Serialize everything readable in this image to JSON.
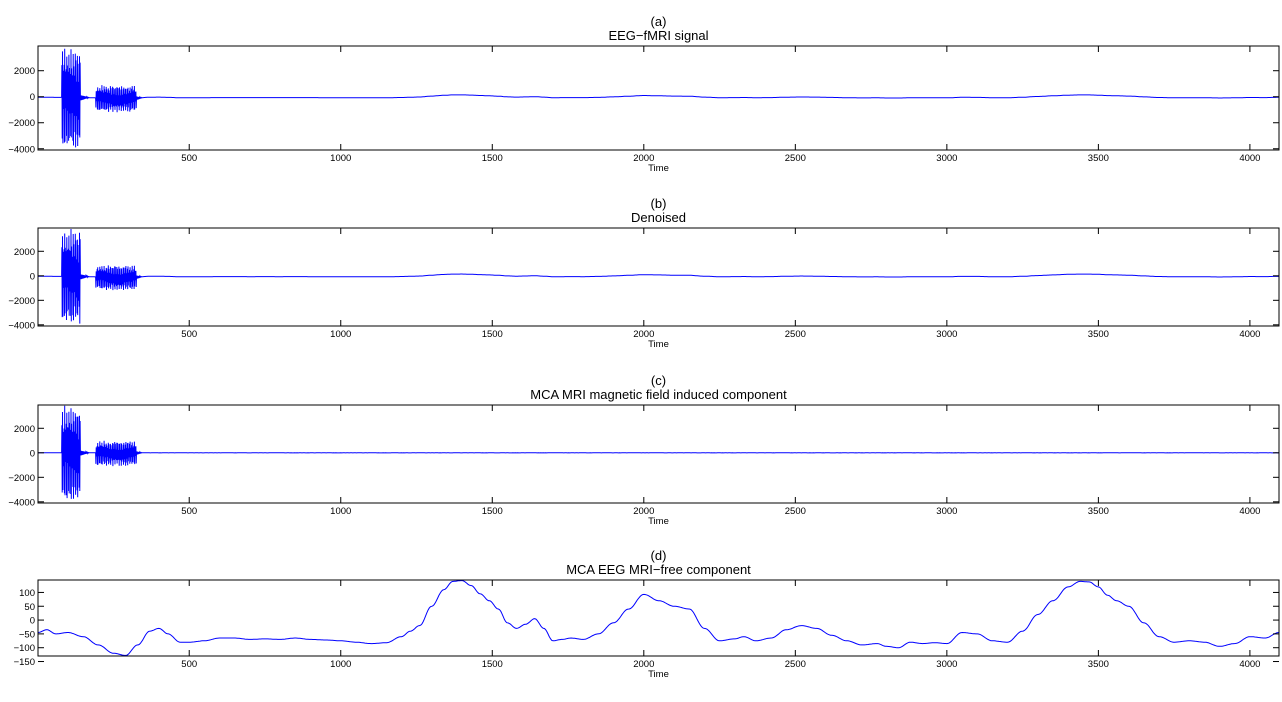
{
  "chart_data": [
    {
      "type": "line",
      "panel_label": "(a)",
      "title": "EEG−fMRI signal",
      "xlabel": "Time",
      "ylabel": "",
      "xlim": [
        1,
        4096
      ],
      "ylim": [
        -4096,
        3900
      ],
      "xticks": [
        500,
        1000,
        1500,
        2000,
        2500,
        3000,
        3500,
        4000
      ],
      "yticks": [
        -4000,
        -2000,
        0,
        2000
      ],
      "ytick_labels": [
        "−4000",
        "−2000",
        "0",
        "2000"
      ],
      "color": "#0000ff",
      "signal": "artifact_plus_eeg"
    },
    {
      "type": "line",
      "panel_label": "(b)",
      "title": "Denoised",
      "xlabel": "Time",
      "ylabel": "",
      "xlim": [
        1,
        4096
      ],
      "ylim": [
        -4096,
        3900
      ],
      "xticks": [
        500,
        1000,
        1500,
        2000,
        2500,
        3000,
        3500,
        4000
      ],
      "yticks": [
        -4000,
        -2000,
        0,
        2000
      ],
      "ytick_labels": [
        "−4000",
        "−2000",
        "0",
        "2000"
      ],
      "color": "#0000ff",
      "signal": "artifact_plus_eeg"
    },
    {
      "type": "line",
      "panel_label": "(c)",
      "title": "MCA MRI magnetic field induced component",
      "xlabel": "Time",
      "ylabel": "",
      "xlim": [
        1,
        4096
      ],
      "ylim": [
        -4096,
        3900
      ],
      "xticks": [
        500,
        1000,
        1500,
        2000,
        2500,
        3000,
        3500,
        4000
      ],
      "yticks": [
        -4000,
        -2000,
        0,
        2000
      ],
      "ytick_labels": [
        "−4000",
        "−2000",
        "0",
        "2000"
      ],
      "color": "#0000ff",
      "signal": "artifact"
    },
    {
      "type": "line",
      "panel_label": "(d)",
      "title": "MCA EEG MRI−free component",
      "xlabel": "Time",
      "ylabel": "",
      "xlim": [
        1,
        4096
      ],
      "ylim": [
        -130,
        145
      ],
      "xticks": [
        500,
        1000,
        1500,
        2000,
        2500,
        3000,
        3500,
        4000
      ],
      "yticks": [
        -150,
        -100,
        -50,
        0,
        50,
        100
      ],
      "ytick_labels": [
        "−150",
        "−100",
        "−50",
        "0",
        "50",
        "100"
      ],
      "color": "#0000ff",
      "signal": "eeg"
    }
  ],
  "eeg_points": {
    "x": [
      1,
      30,
      60,
      100,
      150,
      200,
      250,
      290,
      330,
      370,
      400,
      430,
      470,
      500,
      550,
      600,
      650,
      700,
      750,
      800,
      850,
      900,
      950,
      1000,
      1050,
      1100,
      1150,
      1200,
      1230,
      1260,
      1300,
      1340,
      1370,
      1400,
      1430,
      1460,
      1490,
      1520,
      1550,
      1580,
      1610,
      1640,
      1670,
      1700,
      1730,
      1760,
      1800,
      1850,
      1900,
      1950,
      2000,
      2050,
      2100,
      2150,
      2200,
      2250,
      2300,
      2330,
      2370,
      2420,
      2470,
      2520,
      2570,
      2620,
      2670,
      2720,
      2770,
      2800,
      2840,
      2880,
      2920,
      2960,
      3000,
      3050,
      3100,
      3150,
      3200,
      3250,
      3300,
      3350,
      3400,
      3440,
      3470,
      3500,
      3530,
      3560,
      3600,
      3650,
      3700,
      3750,
      3800,
      3850,
      3900,
      3950,
      4000,
      4050,
      4096
    ],
    "y": [
      -45,
      -35,
      -50,
      -45,
      -60,
      -90,
      -120,
      -128,
      -90,
      -40,
      -30,
      -50,
      -80,
      -80,
      -75,
      -65,
      -65,
      -70,
      -68,
      -70,
      -65,
      -70,
      -72,
      -75,
      -80,
      -85,
      -82,
      -60,
      -40,
      -20,
      50,
      110,
      140,
      143,
      125,
      95,
      70,
      40,
      -10,
      -30,
      -15,
      5,
      -30,
      -75,
      -70,
      -65,
      -70,
      -50,
      -10,
      40,
      93,
      70,
      50,
      40,
      -30,
      -75,
      -68,
      -60,
      -75,
      -65,
      -35,
      -20,
      -30,
      -55,
      -75,
      -90,
      -85,
      -95,
      -100,
      -80,
      -85,
      -82,
      -85,
      -45,
      -50,
      -75,
      -80,
      -40,
      20,
      70,
      120,
      140,
      138,
      120,
      90,
      70,
      50,
      -10,
      -60,
      -80,
      -75,
      -80,
      -95,
      -85,
      -60,
      -65,
      -45
    ]
  },
  "artifact_bursts": [
    {
      "x_start": 80,
      "x_end": 140,
      "amplitude": 3900,
      "negative_amplitude": 4096
    },
    {
      "x_start": 192,
      "x_end": 325,
      "amplitude": 1000,
      "negative_amplitude": 1100
    }
  ]
}
